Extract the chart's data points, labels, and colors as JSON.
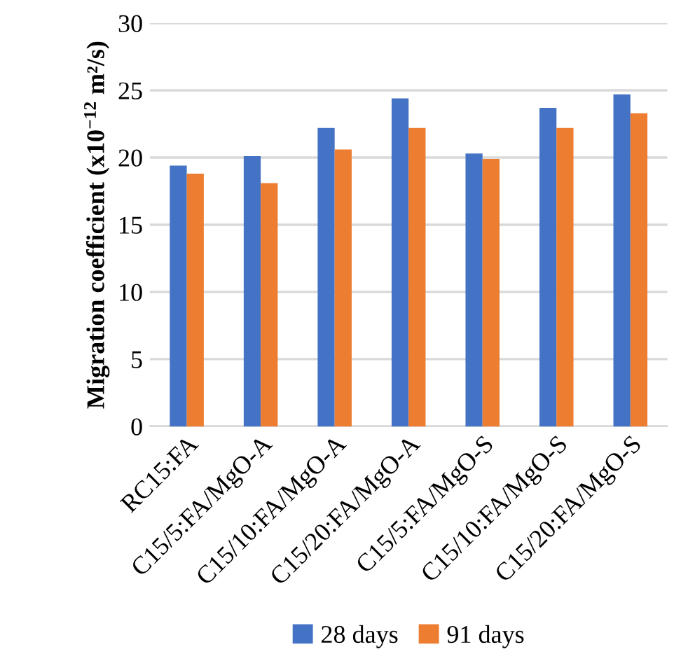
{
  "chart_data": {
    "type": "bar",
    "ylabel": "Migration coefficient (x10$^{−12}$ m²/s)",
    "categories": [
      "RC15:FA",
      "C15/5:FA/MgO-A",
      "C15/10:FA/MgO-A",
      "C15/20:FA/MgO-A",
      "C15/5:FA/MgO-S",
      "C15/10:FA/MgO-S",
      "C15/20:FA/MgO-S"
    ],
    "series": [
      {
        "name": "28 days",
        "color": "#4472c4",
        "values": [
          19.4,
          20.1,
          22.2,
          24.4,
          20.3,
          23.7,
          24.7
        ]
      },
      {
        "name": "91 days",
        "color": "#ed7d31",
        "values": [
          18.8,
          18.1,
          20.6,
          22.2,
          19.9,
          22.2,
          23.3
        ]
      }
    ],
    "ylim": [
      0,
      30
    ],
    "yticks": [
      0,
      5,
      10,
      15,
      20,
      25,
      30
    ],
    "grid": "y",
    "legend": "bottom"
  }
}
